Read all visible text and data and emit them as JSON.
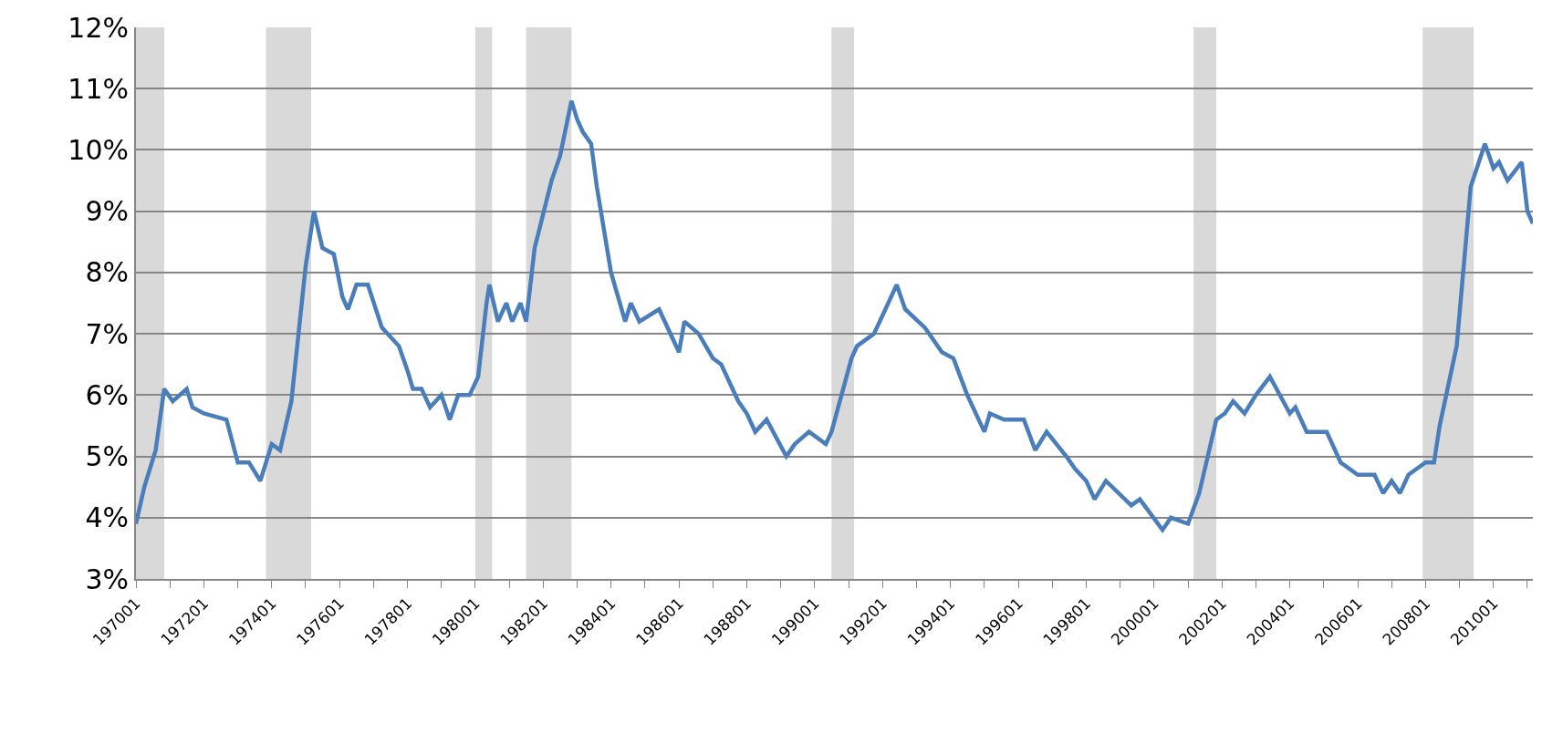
{
  "chart_data": {
    "type": "line",
    "series": [
      {
        "color": "#4a7ebb",
        "x": [
          "1970-01",
          "1970-04",
          "1970-08",
          "1970-11",
          "1971-02",
          "1971-07",
          "1971-09",
          "1972-01",
          "1972-09",
          "1973-01",
          "1973-05",
          "1973-09",
          "1974-01",
          "1974-04",
          "1974-08",
          "1975-01",
          "1975-04",
          "1975-07",
          "1975-11",
          "1976-02",
          "1976-04",
          "1976-07",
          "1976-11",
          "1977-04",
          "1977-10",
          "1978-01",
          "1978-03",
          "1978-06",
          "1978-09",
          "1979-01",
          "1979-04",
          "1979-07",
          "1979-11",
          "1980-02",
          "1980-05",
          "1980-06",
          "1980-09",
          "1980-12",
          "1981-02",
          "1981-05",
          "1981-07",
          "1981-10",
          "1982-04",
          "1982-07",
          "1982-11",
          "1983-01",
          "1983-03",
          "1983-06",
          "1983-08",
          "1984-01",
          "1984-06",
          "1984-08",
          "1984-11",
          "1985-06",
          "1986-01",
          "1986-03",
          "1986-08",
          "1987-01",
          "1987-04",
          "1987-10",
          "1988-01",
          "1988-04",
          "1988-08",
          "1989-03",
          "1989-06",
          "1989-11",
          "1990-05",
          "1990-07",
          "1991-02",
          "1991-04",
          "1991-10",
          "1992-01",
          "1992-06",
          "1992-09",
          "1993-04",
          "1993-10",
          "1994-02",
          "1994-07",
          "1995-01",
          "1995-03",
          "1995-08",
          "1996-03",
          "1996-07",
          "1996-11",
          "1997-06",
          "1997-09",
          "1998-01",
          "1998-04",
          "1998-08",
          "1999-05",
          "1999-08",
          "2000-04",
          "2000-07",
          "2001-01",
          "2001-05",
          "2001-11",
          "2002-02",
          "2002-05",
          "2002-09",
          "2003-01",
          "2003-06",
          "2004-01",
          "2004-03",
          "2004-07",
          "2005-02",
          "2005-07",
          "2006-01",
          "2006-07",
          "2006-10",
          "2007-01",
          "2007-04",
          "2007-07",
          "2008-01",
          "2008-04",
          "2008-06",
          "2008-12",
          "2009-05",
          "2009-10",
          "2010-01",
          "2010-03",
          "2010-06",
          "2010-11",
          "2011-01",
          "2011-03"
        ],
        "values": [
          3.9,
          4.5,
          5.1,
          6.1,
          5.9,
          6.1,
          5.8,
          5.7,
          5.6,
          4.9,
          4.9,
          4.6,
          5.2,
          5.1,
          5.9,
          8.1,
          9.0,
          8.4,
          8.3,
          7.6,
          7.4,
          7.8,
          7.8,
          7.1,
          6.8,
          6.4,
          6.1,
          6.1,
          5.8,
          6.0,
          5.6,
          6.0,
          6.0,
          6.3,
          7.5,
          7.8,
          7.2,
          7.5,
          7.2,
          7.5,
          7.2,
          8.4,
          9.5,
          9.9,
          10.8,
          10.5,
          10.3,
          10.1,
          9.4,
          8.0,
          7.2,
          7.5,
          7.2,
          7.4,
          6.7,
          7.2,
          7.0,
          6.6,
          6.5,
          5.9,
          5.7,
          5.4,
          5.6,
          5.0,
          5.2,
          5.4,
          5.2,
          5.4,
          6.6,
          6.8,
          7.0,
          7.3,
          7.8,
          7.4,
          7.1,
          6.7,
          6.6,
          6.0,
          5.4,
          5.7,
          5.6,
          5.6,
          5.1,
          5.4,
          5.0,
          4.8,
          4.6,
          4.3,
          4.6,
          4.2,
          4.3,
          3.8,
          4.0,
          3.9,
          4.4,
          5.6,
          5.7,
          5.9,
          5.7,
          6.0,
          6.3,
          5.7,
          5.8,
          5.4,
          5.4,
          4.9,
          4.7,
          4.7,
          4.4,
          4.6,
          4.4,
          4.7,
          4.9,
          4.9,
          5.5,
          6.8,
          9.4,
          10.1,
          9.7,
          9.8,
          9.5,
          9.8,
          9.0,
          8.8
        ]
      }
    ],
    "xlim": [
      "1970-01",
      "2011-03"
    ],
    "xticks": [
      {
        "value": "1970-01",
        "label": "197001"
      },
      {
        "value": "1971-01",
        "label": null
      },
      {
        "value": "1972-01",
        "label": "197201"
      },
      {
        "value": "1973-01",
        "label": null
      },
      {
        "value": "1974-01",
        "label": "197401"
      },
      {
        "value": "1975-01",
        "label": null
      },
      {
        "value": "1976-01",
        "label": "197601"
      },
      {
        "value": "1977-01",
        "label": null
      },
      {
        "value": "1978-01",
        "label": "197801"
      },
      {
        "value": "1979-01",
        "label": null
      },
      {
        "value": "1980-01",
        "label": "198001"
      },
      {
        "value": "1981-01",
        "label": null
      },
      {
        "value": "1982-01",
        "label": "198201"
      },
      {
        "value": "1983-01",
        "label": null
      },
      {
        "value": "1984-01",
        "label": "198401"
      },
      {
        "value": "1985-01",
        "label": null
      },
      {
        "value": "1986-01",
        "label": "198601"
      },
      {
        "value": "1987-01",
        "label": null
      },
      {
        "value": "1988-01",
        "label": "198801"
      },
      {
        "value": "1989-01",
        "label": null
      },
      {
        "value": "1990-01",
        "label": "199001"
      },
      {
        "value": "1991-01",
        "label": null
      },
      {
        "value": "1992-01",
        "label": "199201"
      },
      {
        "value": "1993-01",
        "label": null
      },
      {
        "value": "1994-01",
        "label": "199401"
      },
      {
        "value": "1995-01",
        "label": null
      },
      {
        "value": "1996-01",
        "label": "199601"
      },
      {
        "value": "1997-01",
        "label": null
      },
      {
        "value": "1998-01",
        "label": "199801"
      },
      {
        "value": "1999-01",
        "label": null
      },
      {
        "value": "2000-01",
        "label": "200001"
      },
      {
        "value": "2001-01",
        "label": null
      },
      {
        "value": "2002-01",
        "label": "200201"
      },
      {
        "value": "2003-01",
        "label": null
      },
      {
        "value": "2004-01",
        "label": "200401"
      },
      {
        "value": "2005-01",
        "label": null
      },
      {
        "value": "2006-01",
        "label": "200601"
      },
      {
        "value": "2007-01",
        "label": null
      },
      {
        "value": "2008-01",
        "label": "200801"
      },
      {
        "value": "2009-01",
        "label": null
      },
      {
        "value": "2010-01",
        "label": "201001"
      },
      {
        "value": "2011-01",
        "label": null
      }
    ],
    "ylim": [
      3,
      12
    ],
    "yticks": [
      {
        "value": 3,
        "label": "3%"
      },
      {
        "value": 4,
        "label": "4%"
      },
      {
        "value": 5,
        "label": "5%"
      },
      {
        "value": 6,
        "label": "6%"
      },
      {
        "value": 7,
        "label": "7%"
      },
      {
        "value": 8,
        "label": "8%"
      },
      {
        "value": 9,
        "label": "9%"
      },
      {
        "value": 10,
        "label": "10%"
      },
      {
        "value": 11,
        "label": "11%"
      },
      {
        "value": 12,
        "label": "12%"
      }
    ],
    "grid": "y",
    "marker": "none",
    "line_style": "solid",
    "bands": [
      {
        "axis": "x",
        "from": "1970-01",
        "to": "1970-11",
        "color": "#d9d9d9"
      },
      {
        "axis": "x",
        "from": "1973-11",
        "to": "1975-03",
        "color": "#d9d9d9"
      },
      {
        "axis": "x",
        "from": "1980-01",
        "to": "1980-07",
        "color": "#d9d9d9"
      },
      {
        "axis": "x",
        "from": "1981-07",
        "to": "1982-11",
        "color": "#d9d9d9"
      },
      {
        "axis": "x",
        "from": "1990-07",
        "to": "1991-03",
        "color": "#d9d9d9"
      },
      {
        "axis": "x",
        "from": "2001-03",
        "to": "2001-11",
        "color": "#d9d9d9"
      },
      {
        "axis": "x",
        "from": "2007-12",
        "to": "2009-06",
        "color": "#d9d9d9"
      }
    ]
  }
}
